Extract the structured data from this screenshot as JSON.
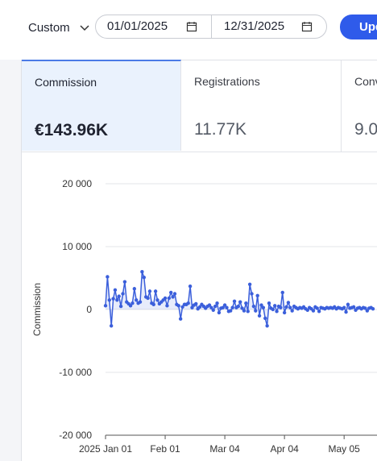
{
  "toolbar": {
    "range": "Custom",
    "start_date": "01/01/2025",
    "end_date": "12/31/2025",
    "button": "Upd"
  },
  "tabs": [
    {
      "label": "Commission",
      "value": "€143.96K"
    },
    {
      "label": "Registrations",
      "value": "11.77K"
    },
    {
      "label": "Conv",
      "value": "9.0"
    }
  ],
  "chart_data": {
    "type": "line",
    "y_label": "Commission",
    "x": [
      "2025-01-01",
      "2025-01-02",
      "2025-01-03",
      "2025-01-04",
      "2025-01-05",
      "2025-01-06",
      "2025-01-07",
      "2025-01-08",
      "2025-01-09",
      "2025-01-10",
      "2025-01-11",
      "2025-01-12",
      "2025-01-13",
      "2025-01-14",
      "2025-01-15",
      "2025-01-16",
      "2025-01-17",
      "2025-01-18",
      "2025-01-19",
      "2025-01-20",
      "2025-01-21",
      "2025-01-22",
      "2025-01-23",
      "2025-01-24",
      "2025-01-25",
      "2025-01-26",
      "2025-01-27",
      "2025-01-28",
      "2025-01-29",
      "2025-01-30",
      "2025-01-31",
      "2025-02-01",
      "2025-02-02",
      "2025-02-03",
      "2025-02-04",
      "2025-02-05",
      "2025-02-06",
      "2025-02-07",
      "2025-02-08",
      "2025-02-09",
      "2025-02-10",
      "2025-02-11",
      "2025-02-12",
      "2025-02-13",
      "2025-02-14",
      "2025-02-15",
      "2025-02-16",
      "2025-02-17",
      "2025-02-18",
      "2025-02-19",
      "2025-02-20",
      "2025-02-21",
      "2025-02-22",
      "2025-02-23",
      "2025-02-24",
      "2025-02-25",
      "2025-02-26",
      "2025-02-27",
      "2025-02-28",
      "2025-03-01",
      "2025-03-02",
      "2025-03-03",
      "2025-03-04",
      "2025-03-05",
      "2025-03-06",
      "2025-03-07",
      "2025-03-08",
      "2025-03-09",
      "2025-03-10",
      "2025-03-11",
      "2025-03-12",
      "2025-03-13",
      "2025-03-14",
      "2025-03-15",
      "2025-03-16",
      "2025-03-17",
      "2025-03-18",
      "2025-03-19",
      "2025-03-20",
      "2025-03-21",
      "2025-03-22",
      "2025-03-23",
      "2025-03-24",
      "2025-03-25",
      "2025-03-26",
      "2025-03-27",
      "2025-03-28",
      "2025-03-29",
      "2025-03-30",
      "2025-03-31",
      "2025-04-01",
      "2025-04-02",
      "2025-04-03",
      "2025-04-04",
      "2025-04-05",
      "2025-04-06",
      "2025-04-07",
      "2025-04-08",
      "2025-04-09",
      "2025-04-10",
      "2025-04-11",
      "2025-04-12",
      "2025-04-13",
      "2025-04-14",
      "2025-04-15",
      "2025-04-16",
      "2025-04-17",
      "2025-04-18",
      "2025-04-19",
      "2025-04-20",
      "2025-04-21",
      "2025-04-22",
      "2025-04-23",
      "2025-04-24",
      "2025-04-25",
      "2025-04-26",
      "2025-04-27",
      "2025-04-28",
      "2025-04-29",
      "2025-04-30",
      "2025-05-01",
      "2025-05-02",
      "2025-05-03",
      "2025-05-04",
      "2025-05-05",
      "2025-05-06",
      "2025-05-07",
      "2025-05-08",
      "2025-05-09",
      "2025-05-10",
      "2025-05-11",
      "2025-05-12",
      "2025-05-13",
      "2025-05-14",
      "2025-05-15",
      "2025-05-16",
      "2025-05-17",
      "2025-05-18",
      "2025-05-19",
      "2025-05-20"
    ],
    "series": [
      {
        "color": "#3b5fdb",
        "values": [
          600,
          5200,
          1500,
          -2600,
          1700,
          3100,
          1500,
          2100,
          500,
          2500,
          4400,
          1200,
          900,
          600,
          1000,
          3300,
          1500,
          1000,
          1200,
          6000,
          5100,
          2000,
          1800,
          2900,
          1000,
          800,
          2900,
          1500,
          900,
          1200,
          1500,
          1800,
          600,
          1800,
          2700,
          2000,
          2500,
          800,
          600,
          -1500,
          400,
          800,
          800,
          1000,
          3700,
          300,
          700,
          900,
          100,
          400,
          800,
          500,
          200,
          500,
          700,
          300,
          -100,
          500,
          1000,
          -500,
          200,
          300,
          700,
          300,
          -300,
          -200,
          300,
          1300,
          300,
          500,
          1200,
          200,
          -200,
          1000,
          -300,
          4000,
          2500,
          500,
          -200,
          2200,
          -1000,
          700,
          300,
          -1400,
          -2600,
          1000,
          200,
          0,
          600,
          -300,
          500,
          300,
          2700,
          -500,
          400,
          1100,
          300,
          -200,
          500,
          300,
          100,
          300,
          200,
          400,
          100,
          -100,
          300,
          100,
          -200,
          400,
          200,
          -300,
          300,
          200,
          100,
          300,
          200,
          300,
          200,
          400,
          100,
          300,
          200,
          100,
          300,
          -400,
          800,
          200,
          300,
          400,
          -100,
          200,
          300,
          100,
          300,
          200,
          -200,
          200,
          300,
          100
        ]
      }
    ],
    "xlim": [
      "2025-01-01",
      "2025-05-20"
    ],
    "xticks": [
      {
        "value": "2025-01-01",
        "label": "2025 Jan 01"
      },
      {
        "value": "2025-02-01",
        "label": "Feb 01"
      },
      {
        "value": "2025-03-04",
        "label": "Mar 04"
      },
      {
        "value": "2025-04-04",
        "label": "Apr 04"
      },
      {
        "value": "2025-05-05",
        "label": "May 05"
      }
    ],
    "ylim": [
      -20000,
      20000
    ],
    "yticks": [
      {
        "value": -20000,
        "label": "-20 000"
      },
      {
        "value": -10000,
        "label": "-10 000"
      },
      0,
      {
        "value": 10000,
        "label": "10 000"
      },
      {
        "value": 20000,
        "label": "20 000"
      }
    ],
    "grid": true
  }
}
